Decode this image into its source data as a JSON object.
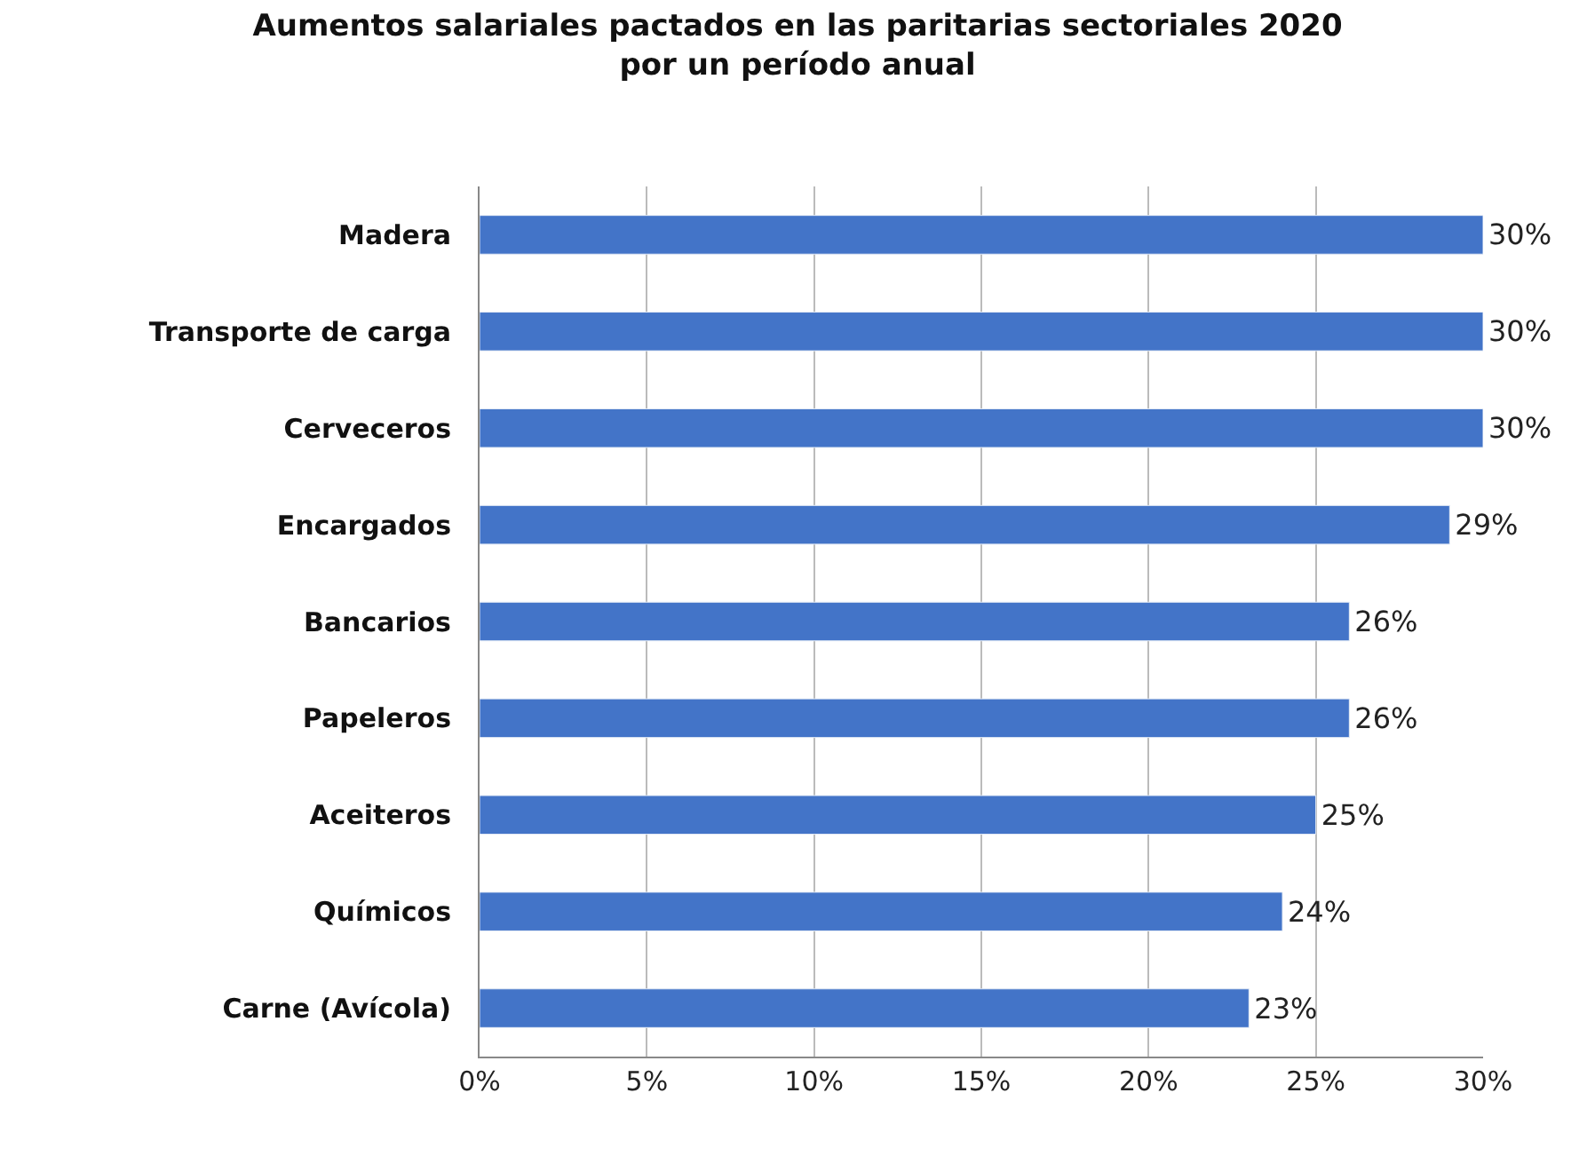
{
  "chart_data": {
    "type": "bar",
    "orientation": "horizontal",
    "title": "Aumentos salariales pactados en las paritarias sectoriales 2020 por un período anual",
    "categories": [
      "Madera",
      "Transporte de carga",
      "Cerveceros",
      "Encargados",
      "Bancarios",
      "Papeleros",
      "Aceiteros",
      "Químicos",
      "Carne (Avícola)"
    ],
    "values": [
      30,
      30,
      30,
      29,
      26,
      26,
      25,
      24,
      23
    ],
    "value_labels": [
      "30%",
      "30%",
      "30%",
      "29%",
      "26%",
      "26%",
      "25%",
      "24%",
      "23%"
    ],
    "color": "#4374c8",
    "xlim": [
      0,
      30
    ],
    "xticks": [
      {
        "value": 0,
        "label": "0%"
      },
      {
        "value": 5,
        "label": "5%"
      },
      {
        "value": 10,
        "label": "10%"
      },
      {
        "value": 15,
        "label": "15%"
      },
      {
        "value": 20,
        "label": "20%"
      },
      {
        "value": 25,
        "label": "25%"
      },
      {
        "value": 30,
        "label": "30%"
      }
    ],
    "grid": "x"
  }
}
